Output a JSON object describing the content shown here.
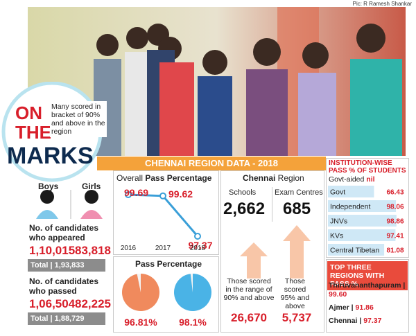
{
  "photo_credit": "Pic: R Ramesh Shankar",
  "badge": {
    "line1": "ON",
    "line2": "THE",
    "line3": "MARKS",
    "note": "Many scored in bracket of 90% and above in the region"
  },
  "section_title": "CHENNAI REGION DATA - 2018",
  "candidates": {
    "boys_label": "Boys",
    "girls_label": "Girls",
    "appeared_label": "No. of candidates who appeared",
    "appeared_boys": "1,10,015",
    "appeared_girls": "83,818",
    "appeared_total": "Total | 1,93,833",
    "passed_label": "No. of candidates who passed",
    "passed_boys": "1,06,504",
    "passed_girls": "82,225",
    "passed_total": "Total | 1,88,729"
  },
  "overall_pass": {
    "title_prefix": "Overall ",
    "title_bold": "Pass Percentage",
    "categories": [
      "2016",
      "2017",
      "2018"
    ],
    "values": [
      99.69,
      99.62,
      97.37
    ],
    "color": "#3a9fd8"
  },
  "pass_percentage": {
    "title": "Pass Percentage",
    "values": [
      96.81,
      98.1
    ],
    "value_labels": [
      "96.81%",
      "98.1%"
    ],
    "colors": [
      "#f08a5d",
      "#4ab3e6"
    ]
  },
  "chennai_region": {
    "title_bold": "Chennai",
    "title_rest": " Region",
    "schools_label": "Schools",
    "schools": "2,662",
    "centres_label": "Exam Centres",
    "centres": "685",
    "range_label": "Those scored in the range of 90% and above",
    "range_value": "26,670",
    "above95_label": "Those scored 95% and above",
    "above95_value": "5,737"
  },
  "institution": {
    "title": "INSTITUTION-WISE PASS % OF STUDENTS",
    "govt_aided_label": "Govt-aided",
    "govt_aided_value": "nil",
    "categories": [
      "Govt",
      "Independent",
      "JNVs",
      "KVs",
      "Central Tibetan"
    ],
    "values": [
      66.43,
      98.06,
      98.86,
      97.41,
      81.08
    ],
    "color": "#cfe8f6"
  },
  "top_regions": {
    "title": "TOP THREE REGIONS WITH PASS %",
    "names": [
      "Thiruvananthapuram",
      "Ajmer",
      "Chennai"
    ],
    "values": [
      "99.60",
      "91.86",
      "97.37"
    ]
  }
}
